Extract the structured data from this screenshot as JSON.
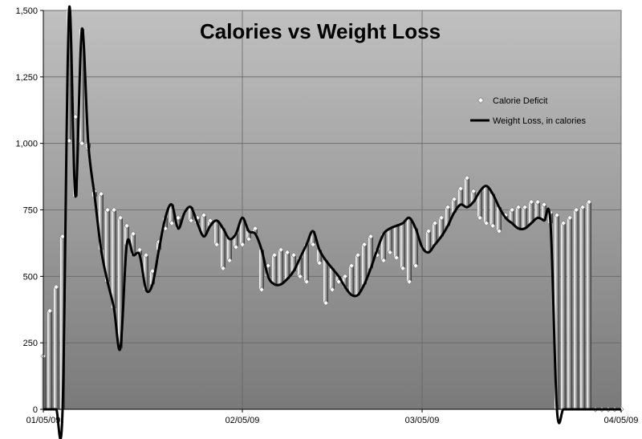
{
  "chart_data": {
    "type": "line",
    "title": "Calories vs Weight Loss",
    "xlabel": "",
    "ylabel": "",
    "ylim": [
      0,
      1500
    ],
    "yticks": [
      0,
      250,
      500,
      750,
      1000,
      1250,
      1500
    ],
    "ytick_labels": [
      "0",
      "250",
      "500",
      "750",
      "1,000",
      "1,250",
      "1,500"
    ],
    "xrange": [
      "2009-01-05",
      "2009-04-05"
    ],
    "xticks": [
      "2009-01-05",
      "2009-02-05",
      "2009-03-05",
      "2009-04-05"
    ],
    "xtick_labels": [
      "01/05/09",
      "02/05/09",
      "03/05/09",
      "04/05/09"
    ],
    "grid": true,
    "legend_position": "right",
    "series": [
      {
        "name": "Calorie Deficit",
        "kind": "markers",
        "color": "#ffffff",
        "x": [
          "2009-01-05",
          "2009-01-06",
          "2009-01-07",
          "2009-01-08",
          "2009-01-09",
          "2009-01-10",
          "2009-01-11",
          "2009-01-12",
          "2009-01-13",
          "2009-01-14",
          "2009-01-15",
          "2009-01-16",
          "2009-01-17",
          "2009-01-18",
          "2009-01-19",
          "2009-01-20",
          "2009-01-21",
          "2009-01-22",
          "2009-01-23",
          "2009-01-24",
          "2009-01-25",
          "2009-01-26",
          "2009-01-27",
          "2009-01-28",
          "2009-01-29",
          "2009-01-30",
          "2009-01-31",
          "2009-02-01",
          "2009-02-02",
          "2009-02-03",
          "2009-02-04",
          "2009-02-05",
          "2009-02-06",
          "2009-02-07",
          "2009-02-08",
          "2009-02-09",
          "2009-02-10",
          "2009-02-11",
          "2009-02-12",
          "2009-02-13",
          "2009-02-14",
          "2009-02-15",
          "2009-02-16",
          "2009-02-17",
          "2009-02-18",
          "2009-02-19",
          "2009-02-20",
          "2009-02-21",
          "2009-02-22",
          "2009-02-23",
          "2009-02-24",
          "2009-02-25",
          "2009-02-26",
          "2009-02-27",
          "2009-02-28",
          "2009-03-01",
          "2009-03-02",
          "2009-03-03",
          "2009-03-04",
          "2009-03-05",
          "2009-03-06",
          "2009-03-07",
          "2009-03-08",
          "2009-03-09",
          "2009-03-10",
          "2009-03-11",
          "2009-03-12",
          "2009-03-13",
          "2009-03-14",
          "2009-03-15",
          "2009-03-16",
          "2009-03-17",
          "2009-03-18",
          "2009-03-19",
          "2009-03-20",
          "2009-03-21",
          "2009-03-22",
          "2009-03-23",
          "2009-03-24",
          "2009-03-25",
          "2009-03-26",
          "2009-03-27",
          "2009-03-28",
          "2009-03-29",
          "2009-03-30",
          "2009-03-31",
          "2009-04-01",
          "2009-04-02",
          "2009-04-03",
          "2009-04-04",
          "2009-04-05"
        ],
        "values": [
          200,
          370,
          460,
          650,
          1010,
          1100,
          1000,
          980,
          820,
          810,
          750,
          750,
          720,
          690,
          660,
          600,
          580,
          520,
          630,
          680,
          700,
          720,
          740,
          710,
          720,
          730,
          710,
          620,
          530,
          560,
          610,
          620,
          640,
          680,
          450,
          540,
          580,
          600,
          590,
          580,
          500,
          480,
          620,
          550,
          400,
          450,
          480,
          500,
          540,
          580,
          620,
          650,
          580,
          560,
          590,
          570,
          530,
          480,
          540,
          610,
          670,
          700,
          720,
          760,
          790,
          830,
          870,
          820,
          720,
          700,
          690,
          670,
          730,
          750,
          760,
          760,
          780,
          780,
          770,
          740,
          730,
          700,
          720,
          750,
          760,
          780,
          0,
          0,
          0,
          0,
          0
        ]
      },
      {
        "name": "Weight Loss, in calories",
        "kind": "line",
        "color": "#000000",
        "x": [
          "2009-01-05",
          "2009-01-06",
          "2009-01-07",
          "2009-01-08",
          "2009-01-09",
          "2009-01-10",
          "2009-01-11",
          "2009-01-12",
          "2009-01-13",
          "2009-01-14",
          "2009-01-15",
          "2009-01-16",
          "2009-01-17",
          "2009-01-18",
          "2009-01-19",
          "2009-01-20",
          "2009-01-21",
          "2009-01-22",
          "2009-01-23",
          "2009-01-24",
          "2009-01-25",
          "2009-01-26",
          "2009-01-27",
          "2009-01-28",
          "2009-01-29",
          "2009-01-30",
          "2009-01-31",
          "2009-02-01",
          "2009-02-02",
          "2009-02-03",
          "2009-02-04",
          "2009-02-05",
          "2009-02-06",
          "2009-02-07",
          "2009-02-08",
          "2009-02-09",
          "2009-02-10",
          "2009-02-11",
          "2009-02-12",
          "2009-02-13",
          "2009-02-14",
          "2009-02-15",
          "2009-02-16",
          "2009-02-17",
          "2009-02-18",
          "2009-02-19",
          "2009-02-20",
          "2009-02-21",
          "2009-02-22",
          "2009-02-23",
          "2009-02-24",
          "2009-02-25",
          "2009-02-26",
          "2009-02-27",
          "2009-02-28",
          "2009-03-01",
          "2009-03-02",
          "2009-03-03",
          "2009-03-04",
          "2009-03-05",
          "2009-03-06",
          "2009-03-07",
          "2009-03-08",
          "2009-03-09",
          "2009-03-10",
          "2009-03-11",
          "2009-03-12",
          "2009-03-13",
          "2009-03-14",
          "2009-03-15",
          "2009-03-16",
          "2009-03-17",
          "2009-03-18",
          "2009-03-19",
          "2009-03-20",
          "2009-03-21",
          "2009-03-22",
          "2009-03-23",
          "2009-03-24",
          "2009-03-25",
          "2009-03-26",
          "2009-03-27",
          "2009-03-28",
          "2009-03-29",
          "2009-03-30",
          "2009-03-31",
          "2009-04-01",
          "2009-04-02",
          "2009-04-03",
          "2009-04-04",
          "2009-04-05"
        ],
        "values": [
          0,
          0,
          0,
          0,
          1500,
          800,
          1430,
          1000,
          800,
          600,
          480,
          380,
          230,
          620,
          580,
          580,
          450,
          470,
          600,
          720,
          770,
          680,
          740,
          760,
          700,
          650,
          690,
          710,
          680,
          640,
          660,
          720,
          670,
          660,
          600,
          500,
          470,
          470,
          490,
          520,
          570,
          620,
          670,
          600,
          560,
          530,
          500,
          460,
          430,
          430,
          470,
          530,
          600,
          660,
          680,
          690,
          700,
          720,
          680,
          610,
          590,
          620,
          650,
          690,
          740,
          770,
          760,
          780,
          820,
          840,
          810,
          760,
          720,
          700,
          680,
          680,
          700,
          720,
          710,
          700,
          0,
          0,
          0,
          0,
          0,
          0,
          0,
          0,
          0,
          0,
          0
        ]
      }
    ]
  }
}
